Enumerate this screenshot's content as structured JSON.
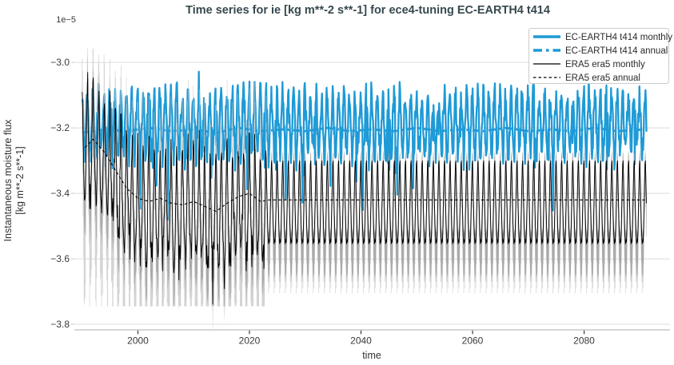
{
  "figure": {
    "background": "#ffffff",
    "grid_color": "#dcdcdc",
    "spine_color": "#c9c9c9",
    "tick_color": "#3a3a3a"
  },
  "chart_data": {
    "type": "line",
    "title": "Time series for ie [kg m**-2 s**-1] for ece4-tuning EC-EARTH4 t414",
    "title_color": "#36494e",
    "xlabel": "time",
    "ylabel_lines": [
      "Instantaneous moisture flux",
      "[kg m**-2 s**-1]"
    ],
    "offset_label": "1e−5",
    "xlim": [
      1988.6,
      2095.4
    ],
    "ylim": [
      -3.817,
      -2.907
    ],
    "xticks": [
      2000,
      2020,
      2040,
      2060,
      2080
    ],
    "xtick_labels": [
      "2000",
      "2020",
      "2040",
      "2060",
      "2080"
    ],
    "yticks": [
      -3.0,
      -3.2,
      -3.4,
      -3.6,
      -3.8
    ],
    "ytick_labels": [
      "−3.0",
      "−3.2",
      "−3.4",
      "−3.6",
      "−3.8"
    ],
    "grid": {
      "horizontal": true,
      "vertical": false
    },
    "legend": {
      "position": "upper right",
      "entries": [
        {
          "label": "EC-EARTH4 t414 monthly",
          "color": "#1e9ad6",
          "style": "solid",
          "weight": "thick"
        },
        {
          "label": "EC-EARTH4 t414 annual",
          "color": "#1e9ad6",
          "style": "dashed",
          "weight": "thick"
        },
        {
          "label": "ERA5 era5 monthly",
          "color": "#000000",
          "style": "solid",
          "weight": "thin"
        },
        {
          "label": "ERA5 era5 annual",
          "color": "#000000",
          "style": "dashed",
          "weight": "thin"
        }
      ]
    },
    "series": {
      "model_monthly": {
        "label": "EC-EARTH4 t414 monthly",
        "color": "#1e9ad6",
        "x_start": 1990.0,
        "x_end": 2091.17,
        "points_per_year": 12,
        "center": -3.2,
        "seasonal_shape": [
          1.05,
          0.6,
          0.15,
          -0.3,
          -0.7,
          -1.0,
          -0.8,
          -0.4,
          0.1,
          0.5,
          0.9,
          1.1
        ],
        "seasonal_scale": 0.09,
        "noise": 0.042,
        "dip_chance": 0.03,
        "dip_extra": 0.115,
        "peak_chance": 0.02,
        "peak_extra": 0.045,
        "band_summary": {
          "typical_top": -3.1,
          "typical_bottom": -3.31,
          "extreme_top": -3.05,
          "extreme_bottom": -3.47
        }
      },
      "model_annual": {
        "label": "EC-EARTH4 t414 annual",
        "color": "#1e9ad6",
        "points": [
          [
            1990,
            -3.215
          ],
          [
            1994,
            -3.205
          ],
          [
            1998,
            -3.21
          ],
          [
            2002,
            -3.2
          ],
          [
            2006,
            -3.21
          ],
          [
            2010,
            -3.205
          ],
          [
            2014,
            -3.215
          ],
          [
            2018,
            -3.2
          ],
          [
            2022,
            -3.21
          ],
          [
            2026,
            -3.205
          ],
          [
            2030,
            -3.21
          ],
          [
            2034,
            -3.2
          ],
          [
            2038,
            -3.21
          ],
          [
            2042,
            -3.205
          ],
          [
            2046,
            -3.21
          ],
          [
            2050,
            -3.2
          ],
          [
            2054,
            -3.21
          ],
          [
            2058,
            -3.205
          ],
          [
            2062,
            -3.21
          ],
          [
            2066,
            -3.2
          ],
          [
            2070,
            -3.21
          ],
          [
            2074,
            -3.205
          ],
          [
            2078,
            -3.21
          ],
          [
            2082,
            -3.2
          ],
          [
            2086,
            -3.21
          ],
          [
            2091,
            -3.205
          ]
        ]
      },
      "ref_monthly": {
        "label": "ERA5 era5 monthly",
        "color": "#000000",
        "x_start": 1990.0,
        "x_end": 2091.17,
        "points_per_year": 12,
        "real_data_until": 2023.0,
        "trend_points": [
          [
            1990,
            -3.25
          ],
          [
            1991.5,
            -3.22
          ],
          [
            1993,
            -3.26
          ],
          [
            1995,
            -3.3
          ],
          [
            1997,
            -3.36
          ],
          [
            1999,
            -3.4
          ],
          [
            2001,
            -3.42
          ],
          [
            2003,
            -3.415
          ],
          [
            2005,
            -3.42
          ],
          [
            2007,
            -3.435
          ],
          [
            2009,
            -3.43
          ],
          [
            2011,
            -3.425
          ],
          [
            2013,
            -3.45
          ],
          [
            2015,
            -3.435
          ],
          [
            2017,
            -3.42
          ],
          [
            2019,
            -3.405
          ],
          [
            2021,
            -3.415
          ],
          [
            2023,
            -3.425
          ]
        ],
        "seasonal_cycle": [
          0.125,
          0.06,
          -0.005,
          -0.065,
          -0.105,
          -0.13,
          -0.115,
          -0.125,
          -0.08,
          -0.015,
          0.055,
          0.115
        ],
        "real_amp_factor": 1.32,
        "real_noise": 0.055,
        "real_dip_chance": 0.05,
        "real_dip_extra": 0.07,
        "climatology_base": -3.425,
        "band_summary": {
          "real_top": -3.05,
          "real_bottom": -3.65,
          "climatology_top": -3.3,
          "climatology_bottom": -3.555
        }
      },
      "ref_annual": {
        "label": "ERA5 era5 annual",
        "color": "#000000",
        "points": [
          [
            1990.5,
            -3.26
          ],
          [
            1992,
            -3.235
          ],
          [
            1994,
            -3.275
          ],
          [
            1996,
            -3.33
          ],
          [
            1998,
            -3.385
          ],
          [
            2000,
            -3.415
          ],
          [
            2002,
            -3.425
          ],
          [
            2004,
            -3.415
          ],
          [
            2006,
            -3.43
          ],
          [
            2008,
            -3.435
          ],
          [
            2010,
            -3.425
          ],
          [
            2012,
            -3.44
          ],
          [
            2014,
            -3.455
          ],
          [
            2016,
            -3.43
          ],
          [
            2018,
            -3.41
          ],
          [
            2020,
            -3.4
          ],
          [
            2022,
            -3.425
          ],
          [
            2023.5,
            -3.42
          ],
          [
            2091,
            -3.42
          ]
        ]
      }
    },
    "shading": {
      "spread_band": {
        "description": "gray envelope hugging ERA5 monthly line",
        "color": "#808080",
        "opacity": 0.5,
        "halfwidth_above": 0.032,
        "halfwidth_below": 0.105
      },
      "minmax_spikes": {
        "description": "light gray monthly min-max range spikes",
        "color": "#c6c6c6",
        "opacity": 0.75,
        "stroke_width": 0.7,
        "real": {
          "above_base": 0.035,
          "above_seasonal": 0.45,
          "above_rand": 0.09,
          "top_clamp": -2.958,
          "below_base": 0.09,
          "below_seasonal": 0.95,
          "below_rand": 0.16,
          "bottom_clamp": -3.745
        },
        "climatology": {
          "above": 0.022,
          "below_by_month": [
            0.06,
            0.08,
            0.1,
            0.12,
            0.14,
            0.15,
            0.13,
            0.14,
            0.11,
            0.09,
            0.07,
            0.055
          ]
        }
      }
    }
  }
}
